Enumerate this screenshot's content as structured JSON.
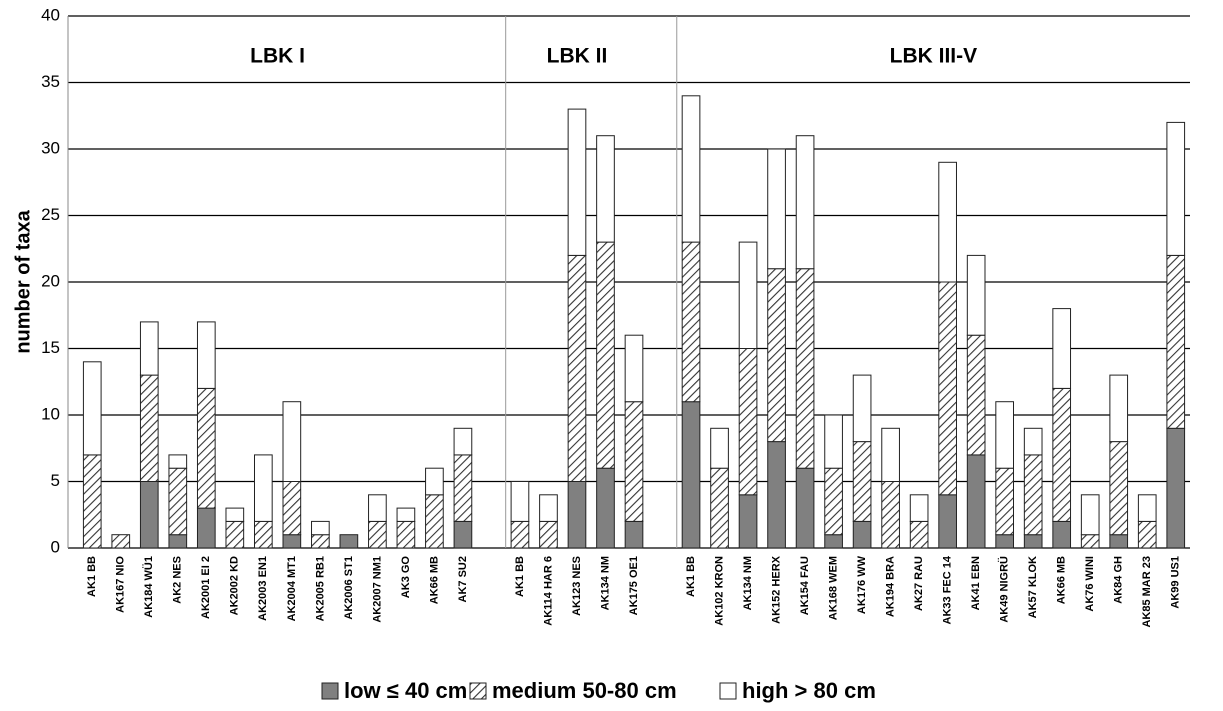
{
  "chart_data": {
    "type": "stacked_bar",
    "y_label": "number of taxa",
    "groups": [
      "LBK I",
      "LBK II",
      "LBK III-V"
    ],
    "categories": [
      "AK1 BB",
      "AK167 NIO",
      "AK184 WÜ1",
      "AK2 NES",
      "AK2001 EI 2",
      "AK2002 KD",
      "AK2003 EN1",
      "AK2004 MT1",
      "AK2005 RB1",
      "AK2006 ST1",
      "AK2007 NM1",
      "AK3 GO",
      "AK66 MB",
      "AK7 SU2",
      null,
      "AK1 BB",
      "AK114 HAR 6",
      "AK123 NES",
      "AK134 NM",
      "AK175 OE1",
      null,
      "AK1 BB",
      "AK102 KRON",
      "AK134 NM",
      "AK152 HERX",
      "AK154 FAU",
      "AK168 WEM",
      "AK176 WW",
      "AK194 BRA",
      "AK27 RAU",
      "AK33 FEC 14",
      "AK41 EBN",
      "AK49 NIGRÜ",
      "AK57 KLOK",
      "AK66 MB",
      "AK76 WINI",
      "AK84 GH",
      "AK85 MAR 23",
      "AK99 US1"
    ],
    "series": [
      {
        "name": "low ≤  40 cm",
        "color": "#808080",
        "pattern": "solid",
        "values": [
          0,
          0,
          5,
          1,
          3,
          0,
          0,
          1,
          0,
          1,
          0,
          0,
          0,
          2,
          null,
          0,
          0,
          5,
          6,
          2,
          null,
          11,
          0,
          4,
          8,
          6,
          1,
          2,
          0,
          0,
          4,
          7,
          1,
          1,
          2,
          0,
          1,
          0,
          9
        ]
      },
      {
        "name": "medium 50-80 cm",
        "color": "#333333",
        "pattern": "hatch",
        "values": [
          7,
          1,
          8,
          5,
          9,
          2,
          2,
          4,
          1,
          0,
          2,
          2,
          4,
          5,
          null,
          2,
          2,
          17,
          17,
          9,
          null,
          12,
          6,
          11,
          13,
          15,
          5,
          6,
          5,
          2,
          16,
          9,
          5,
          6,
          10,
          1,
          7,
          2,
          13
        ]
      },
      {
        "name": "high > 80 cm",
        "color": "#ffffff",
        "pattern": "solid",
        "values": [
          7,
          0,
          4,
          1,
          5,
          1,
          5,
          6,
          1,
          0,
          2,
          1,
          2,
          2,
          null,
          3,
          2,
          11,
          8,
          5,
          null,
          11,
          3,
          8,
          9,
          10,
          4,
          5,
          4,
          2,
          9,
          6,
          5,
          2,
          6,
          3,
          5,
          2,
          10
        ]
      }
    ],
    "ylim": [
      0,
      40
    ],
    "yticks": [
      0,
      5,
      10,
      15,
      20,
      25,
      30,
      35,
      40
    ],
    "grid": true,
    "legend": "bottom"
  }
}
